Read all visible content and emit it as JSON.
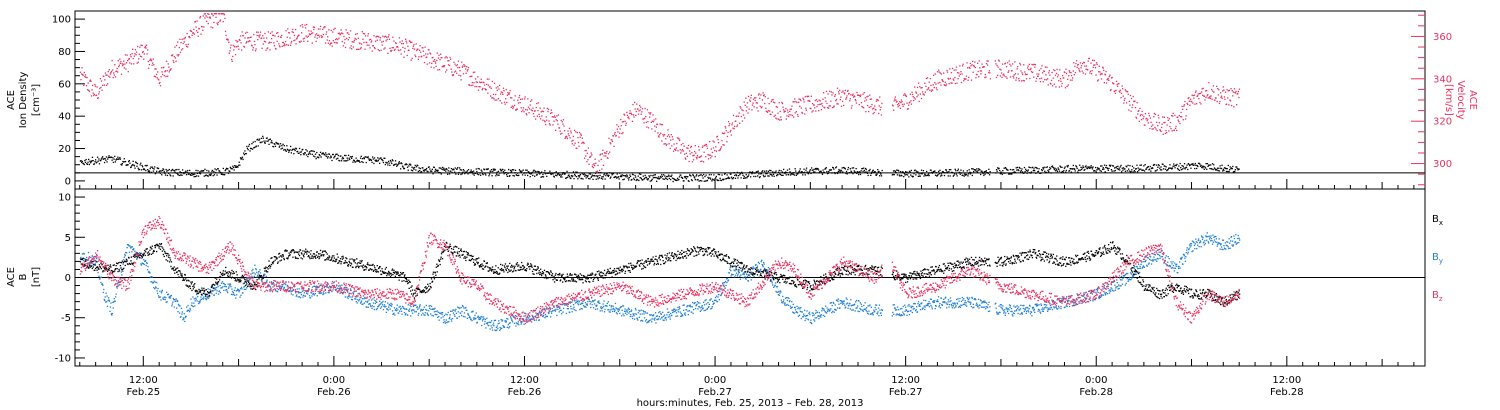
{
  "colors": {
    "black": "#000000",
    "pink": "#e8325f",
    "blue": "#1f7fd8"
  },
  "x_axis": {
    "title": "hours:minutes, Feb. 25, 2013 – Feb. 28, 2013",
    "range_hours": [
      7.7,
      92.7
    ],
    "ticks": [
      {
        "hour": 12,
        "time": "12:00",
        "date": "Feb.25"
      },
      {
        "hour": 24,
        "time": "0:00",
        "date": "Feb.26"
      },
      {
        "hour": 36,
        "time": "12:00",
        "date": "Feb.26"
      },
      {
        "hour": 48,
        "time": "0:00",
        "date": "Feb.27"
      },
      {
        "hour": 60,
        "time": "12:00",
        "date": "Feb.27"
      },
      {
        "hour": 72,
        "time": "0:00",
        "date": "Feb.28"
      },
      {
        "hour": 84,
        "time": "12:00",
        "date": "Feb.28"
      }
    ]
  },
  "chart_data": [
    {
      "type": "scatter",
      "panel": "top",
      "ylabel_left": [
        "ACE",
        "Ion Density",
        "[cm⁻³]"
      ],
      "ylabel_right": [
        "ACE",
        "Velocity",
        "[km/s]"
      ],
      "y_left": {
        "ylim": [
          -5,
          105
        ],
        "ticks": [
          0,
          20,
          40,
          60,
          80,
          100
        ]
      },
      "y_right": {
        "ylim": [
          288,
          372
        ],
        "ticks": [
          300,
          320,
          340,
          360
        ]
      },
      "series": [
        {
          "axis": "left",
          "color": "black",
          "points": [
            [
              8,
              12
            ],
            [
              10,
              14
            ],
            [
              11.5,
              10
            ],
            [
              13,
              6
            ],
            [
              15,
              5
            ],
            [
              17,
              6
            ],
            [
              17.8,
              8
            ],
            [
              18.5,
              20
            ],
            [
              19.5,
              26
            ],
            [
              21,
              20
            ],
            [
              23,
              16
            ],
            [
              25,
              14
            ],
            [
              27,
              13
            ],
            [
              28.5,
              9
            ],
            [
              30,
              7
            ],
            [
              33,
              6
            ],
            [
              36,
              5
            ],
            [
              39,
              4
            ],
            [
              42,
              3
            ],
            [
              45,
              2
            ],
            [
              48,
              2.5
            ],
            [
              50,
              4
            ],
            [
              53,
              6
            ],
            [
              56,
              7
            ],
            [
              59,
              5
            ],
            [
              62,
              5
            ],
            [
              65,
              6
            ],
            [
              68,
              7
            ],
            [
              71,
              8
            ],
            [
              74,
              8
            ],
            [
              77,
              9
            ],
            [
              78.5,
              10
            ],
            [
              81,
              7
            ]
          ]
        },
        {
          "axis": "right",
          "color": "pink",
          "points": [
            [
              8,
              342
            ],
            [
              9,
              333
            ],
            [
              10,
              345
            ],
            [
              11,
              348
            ],
            [
              12,
              354
            ],
            [
              13,
              340
            ],
            [
              14,
              352
            ],
            [
              15,
              362
            ],
            [
              16,
              368
            ],
            [
              17,
              370
            ],
            [
              17.5,
              352
            ],
            [
              18,
              358
            ],
            [
              20,
              358
            ],
            [
              22,
              362
            ],
            [
              24,
              360
            ],
            [
              26,
              358
            ],
            [
              28,
              356
            ],
            [
              30,
              350
            ],
            [
              32,
              344
            ],
            [
              34,
              335
            ],
            [
              36,
              328
            ],
            [
              38,
              320
            ],
            [
              39.5,
              310
            ],
            [
              40.5,
              297
            ],
            [
              42,
              318
            ],
            [
              43,
              326
            ],
            [
              44,
              320
            ],
            [
              45,
              312
            ],
            [
              46,
              306
            ],
            [
              47,
              304
            ],
            [
              48,
              308
            ],
            [
              49,
              318
            ],
            [
              50,
              328
            ],
            [
              51,
              330
            ],
            [
              52,
              325
            ],
            [
              54,
              328
            ],
            [
              56,
              332
            ],
            [
              58,
              328
            ],
            [
              59,
              326
            ],
            [
              60,
              330
            ],
            [
              62,
              340
            ],
            [
              64,
              344
            ],
            [
              66,
              345
            ],
            [
              68,
              343
            ],
            [
              70,
              340
            ],
            [
              71,
              348
            ],
            [
              72,
              344
            ],
            [
              73,
              338
            ],
            [
              74,
              330
            ],
            [
              75,
              322
            ],
            [
              76,
              318
            ],
            [
              77,
              320
            ],
            [
              78,
              330
            ],
            [
              79,
              335
            ],
            [
              80,
              332
            ],
            [
              81,
              331
            ]
          ]
        }
      ]
    },
    {
      "type": "scatter",
      "panel": "bottom",
      "ylabel": [
        "ACE",
        "B",
        "[nT]"
      ],
      "ylim": [
        -11,
        11
      ],
      "yticks": [
        -10,
        -5,
        0,
        5,
        10
      ],
      "legend": [
        "Bx",
        "By",
        "Bz"
      ],
      "legend_placement": "right",
      "series": [
        {
          "name": "Bx",
          "color": "black",
          "points": [
            [
              8,
              2
            ],
            [
              10,
              1
            ],
            [
              12,
              3
            ],
            [
              13,
              4
            ],
            [
              14,
              1
            ],
            [
              15,
              -1
            ],
            [
              16,
              -2
            ],
            [
              17,
              1
            ],
            [
              18,
              0
            ],
            [
              19,
              -1
            ],
            [
              20,
              2
            ],
            [
              21,
              3
            ],
            [
              23,
              3
            ],
            [
              25,
              2
            ],
            [
              27,
              1
            ],
            [
              28.5,
              0
            ],
            [
              29,
              -2
            ],
            [
              30,
              -1
            ],
            [
              31,
              4
            ],
            [
              32,
              3
            ],
            [
              33,
              2
            ],
            [
              34,
              1
            ],
            [
              36,
              1.5
            ],
            [
              38,
              0
            ],
            [
              40,
              0
            ],
            [
              42,
              1
            ],
            [
              44,
              2
            ],
            [
              46,
              3
            ],
            [
              47,
              3.5
            ],
            [
              48,
              3
            ],
            [
              49,
              2
            ],
            [
              50,
              1
            ],
            [
              52,
              0
            ],
            [
              54,
              -1
            ],
            [
              56,
              1
            ],
            [
              58,
              1
            ],
            [
              60,
              0
            ],
            [
              62,
              1
            ],
            [
              64,
              2
            ],
            [
              66,
              2
            ],
            [
              68,
              3
            ],
            [
              70,
              2
            ],
            [
              72,
              3
            ],
            [
              73,
              4
            ],
            [
              74,
              2
            ],
            [
              75,
              -1
            ],
            [
              76,
              -2
            ],
            [
              77,
              -1
            ],
            [
              78,
              -2
            ],
            [
              79,
              -2
            ],
            [
              80,
              -3
            ],
            [
              81,
              -2
            ]
          ]
        },
        {
          "name": "By",
          "color": "blue",
          "points": [
            [
              8,
              3
            ],
            [
              9,
              2
            ],
            [
              9.5,
              -2
            ],
            [
              10,
              -4
            ],
            [
              11,
              4
            ],
            [
              12,
              2
            ],
            [
              13,
              -2
            ],
            [
              14,
              -3
            ],
            [
              14.5,
              -5
            ],
            [
              15,
              -3
            ],
            [
              16,
              -2
            ],
            [
              17,
              -1
            ],
            [
              18,
              -2
            ],
            [
              19,
              1
            ],
            [
              20,
              -1
            ],
            [
              21,
              -1
            ],
            [
              22,
              -2
            ],
            [
              24,
              -1
            ],
            [
              26,
              -3
            ],
            [
              28,
              -4
            ],
            [
              30,
              -4
            ],
            [
              31,
              -5
            ],
            [
              32,
              -4
            ],
            [
              33,
              -5
            ],
            [
              34,
              -6
            ],
            [
              36,
              -5
            ],
            [
              38,
              -4
            ],
            [
              40,
              -3
            ],
            [
              42,
              -4
            ],
            [
              44,
              -5
            ],
            [
              46,
              -4
            ],
            [
              48,
              -3
            ],
            [
              49,
              1
            ],
            [
              50,
              0
            ],
            [
              51,
              2
            ],
            [
              52,
              -2
            ],
            [
              53,
              -4
            ],
            [
              54,
              -5
            ],
            [
              56,
              -3
            ],
            [
              58,
              -4
            ],
            [
              60,
              -4
            ],
            [
              62,
              -3
            ],
            [
              64,
              -3
            ],
            [
              66,
              -4
            ],
            [
              68,
              -4
            ],
            [
              70,
              -3
            ],
            [
              72,
              -2
            ],
            [
              73,
              -1
            ],
            [
              74,
              0
            ],
            [
              75,
              2
            ],
            [
              76,
              3
            ],
            [
              77,
              1
            ],
            [
              78,
              4
            ],
            [
              79,
              5
            ],
            [
              80,
              4
            ],
            [
              81,
              5
            ]
          ]
        },
        {
          "name": "Bz",
          "color": "pink",
          "points": [
            [
              8,
              1
            ],
            [
              9,
              3
            ],
            [
              10,
              0
            ],
            [
              11,
              -1
            ],
            [
              12,
              6
            ],
            [
              13,
              7
            ],
            [
              14,
              3
            ],
            [
              15,
              2
            ],
            [
              16,
              1
            ],
            [
              17,
              3
            ],
            [
              17.5,
              4
            ],
            [
              18,
              2
            ],
            [
              19,
              -1
            ],
            [
              20,
              -1
            ],
            [
              22,
              -1
            ],
            [
              24,
              -1
            ],
            [
              26,
              -2
            ],
            [
              28,
              -2
            ],
            [
              29,
              -3
            ],
            [
              30,
              5
            ],
            [
              31,
              4
            ],
            [
              32,
              0
            ],
            [
              33,
              -1
            ],
            [
              34,
              -3
            ],
            [
              36,
              -5
            ],
            [
              38,
              -3
            ],
            [
              40,
              -2
            ],
            [
              42,
              -1
            ],
            [
              44,
              -3
            ],
            [
              46,
              -2
            ],
            [
              48,
              -1
            ],
            [
              49,
              -2
            ],
            [
              50,
              -3
            ],
            [
              52,
              2
            ],
            [
              53,
              1
            ],
            [
              54,
              -2
            ],
            [
              56,
              2
            ],
            [
              58,
              0
            ],
            [
              59,
              2
            ],
            [
              60,
              -2
            ],
            [
              62,
              -1
            ],
            [
              63,
              0
            ],
            [
              64,
              1
            ],
            [
              66,
              -1
            ],
            [
              68,
              -2
            ],
            [
              70,
              -3
            ],
            [
              72,
              -2
            ],
            [
              73,
              0
            ],
            [
              74,
              2
            ],
            [
              75,
              3
            ],
            [
              76,
              4
            ],
            [
              77,
              -3
            ],
            [
              78,
              -5
            ],
            [
              79,
              -2
            ],
            [
              80,
              -3
            ],
            [
              81,
              -2
            ]
          ]
        }
      ]
    }
  ]
}
